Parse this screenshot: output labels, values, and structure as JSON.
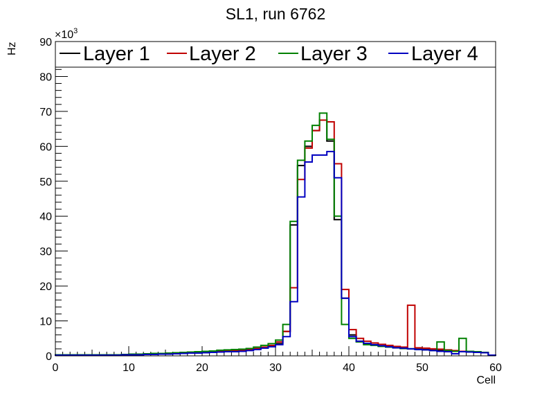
{
  "chart_data": {
    "type": "histogram",
    "title": "SL1, run 6762",
    "xlabel": "Cell",
    "ylabel": "Hz",
    "y_exponent": "×10",
    "y_exponent_power": "3",
    "xlim": [
      0,
      60
    ],
    "ylim": [
      0,
      90
    ],
    "x_ticks": [
      0,
      10,
      20,
      30,
      40,
      50,
      60
    ],
    "y_ticks": [
      0,
      10,
      20,
      30,
      40,
      50,
      60,
      70,
      80,
      90
    ],
    "bin_width": 1,
    "legend_position": "top",
    "series": [
      {
        "name": "Layer 1",
        "color": "#000000",
        "values": [
          0.2,
          0.2,
          0.2,
          0.2,
          0.2,
          0.2,
          0.2,
          0.2,
          0.2,
          0.3,
          0.3,
          0.3,
          0.4,
          0.5,
          0.5,
          0.6,
          0.7,
          0.7,
          0.8,
          0.9,
          1.0,
          1.1,
          1.2,
          1.3,
          1.4,
          1.5,
          1.7,
          2.0,
          2.3,
          2.8,
          3.5,
          7.0,
          37.5,
          54.5,
          60.0,
          64.5,
          67.5,
          61.5,
          39.0,
          16.5,
          6.0,
          4.2,
          3.5,
          3.2,
          2.8,
          2.6,
          2.3,
          2.1,
          2.0,
          1.9,
          1.8,
          1.6,
          1.5,
          1.4,
          1.3,
          1.2,
          1.1,
          1.0,
          0.9,
          0.2
        ]
      },
      {
        "name": "Layer 2",
        "color": "#c00000",
        "values": [
          0.2,
          0.2,
          0.2,
          0.2,
          0.2,
          0.2,
          0.2,
          0.2,
          0.2,
          0.3,
          0.3,
          0.4,
          0.4,
          0.5,
          0.6,
          0.6,
          0.7,
          0.8,
          0.9,
          1.0,
          1.1,
          1.2,
          1.3,
          1.4,
          1.5,
          1.6,
          1.8,
          2.1,
          2.5,
          3.0,
          4.0,
          7.0,
          19.5,
          50.5,
          59.5,
          64.5,
          67.5,
          67.0,
          55.0,
          19.0,
          7.5,
          5.0,
          4.2,
          3.7,
          3.3,
          3.0,
          2.7,
          2.5,
          14.5,
          2.3,
          2.2,
          2.0,
          1.9,
          1.7,
          1.5,
          1.3,
          1.2,
          1.1,
          1.0,
          0.2
        ]
      },
      {
        "name": "Layer 3",
        "color": "#008000",
        "values": [
          0.3,
          0.3,
          0.3,
          0.3,
          0.3,
          0.3,
          0.3,
          0.3,
          0.3,
          0.4,
          0.5,
          0.5,
          0.6,
          0.7,
          0.7,
          0.8,
          0.9,
          1.0,
          1.1,
          1.2,
          1.3,
          1.4,
          1.6,
          1.7,
          1.8,
          1.9,
          2.1,
          2.5,
          3.0,
          3.5,
          4.5,
          9.0,
          38.5,
          56.0,
          61.5,
          66.0,
          69.5,
          62.0,
          40.0,
          9.0,
          5.0,
          4.0,
          3.2,
          3.0,
          2.7,
          2.5,
          2.3,
          2.1,
          2.0,
          1.8,
          1.7,
          1.5,
          4.0,
          1.5,
          1.3,
          5.0,
          1.3,
          1.2,
          1.0,
          0.2
        ]
      },
      {
        "name": "Layer 4",
        "color": "#0000c0",
        "values": [
          0.2,
          0.2,
          0.2,
          0.2,
          0.2,
          0.2,
          0.2,
          0.2,
          0.2,
          0.3,
          0.3,
          0.3,
          0.4,
          0.4,
          0.5,
          0.5,
          0.6,
          0.7,
          0.8,
          0.8,
          0.9,
          1.0,
          1.1,
          1.2,
          1.2,
          1.3,
          1.5,
          1.8,
          2.2,
          2.6,
          3.2,
          5.5,
          15.5,
          45.5,
          55.5,
          57.5,
          57.5,
          58.5,
          51.0,
          16.5,
          5.5,
          4.2,
          3.6,
          3.2,
          2.9,
          2.6,
          2.3,
          2.2,
          2.0,
          1.8,
          1.7,
          1.5,
          1.3,
          1.2,
          0.6,
          1.2,
          1.1,
          1.0,
          0.9,
          0.2
        ]
      }
    ]
  }
}
